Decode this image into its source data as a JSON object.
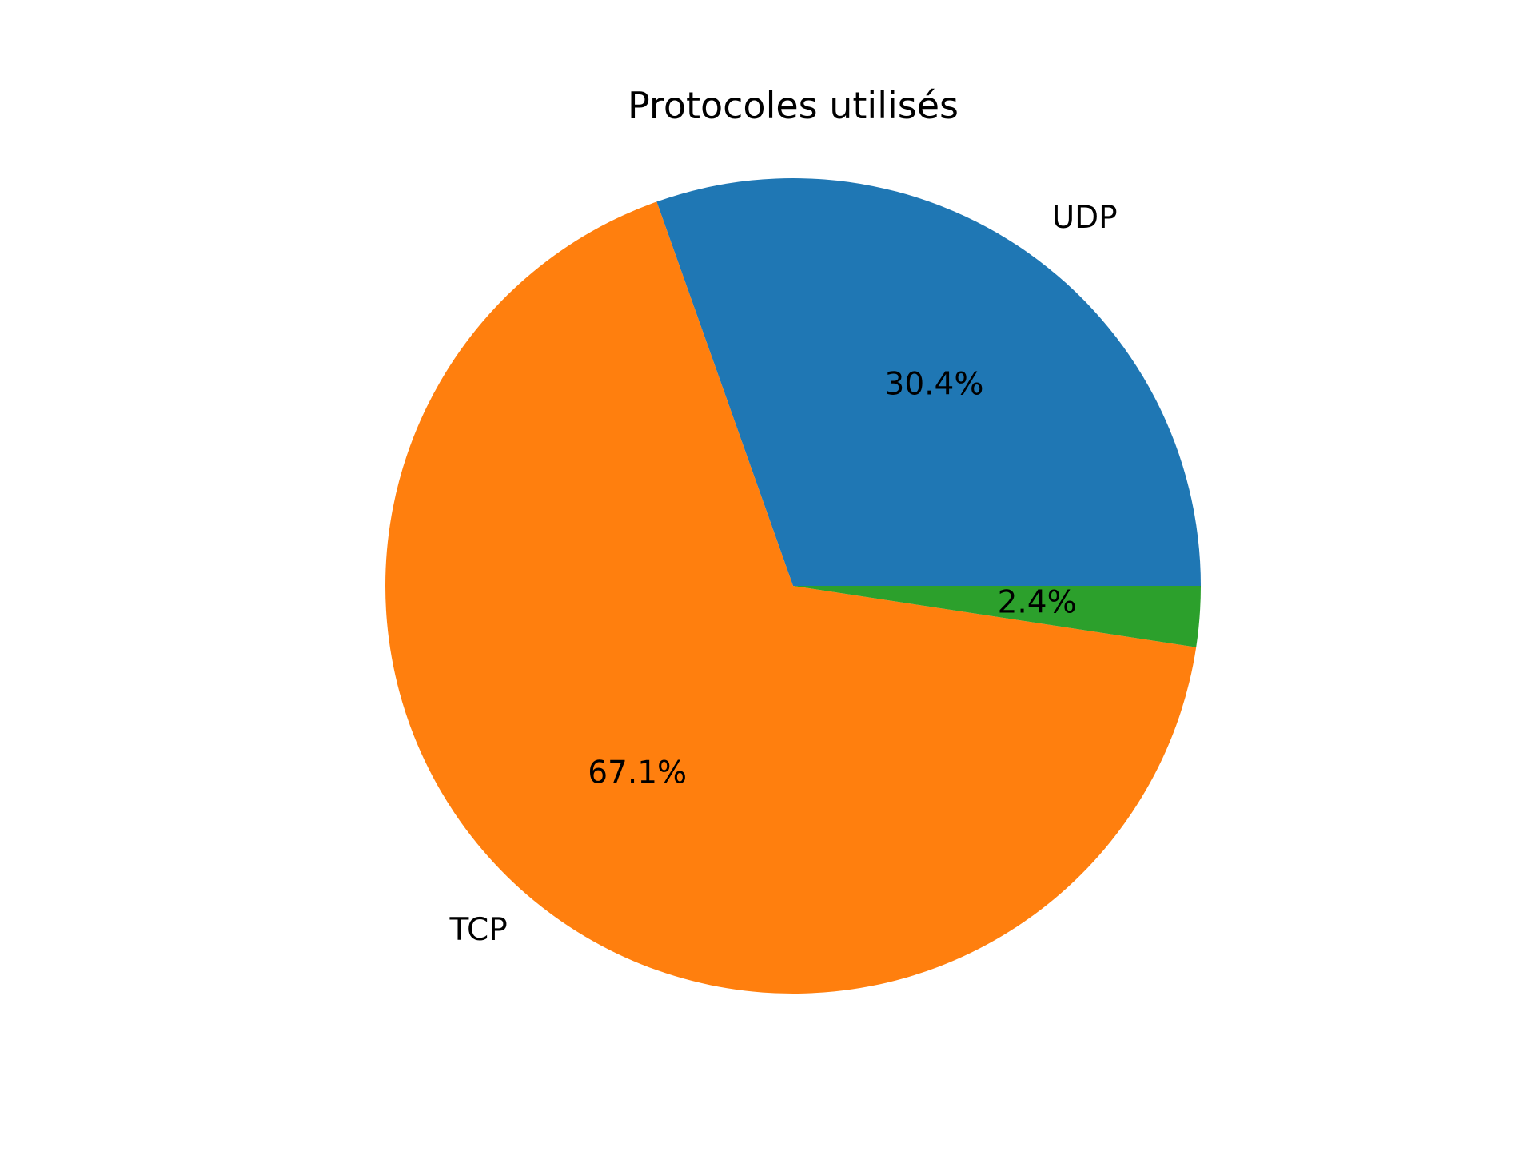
{
  "chart_data": {
    "type": "pie",
    "title": "Protocoles utilisés",
    "slices": [
      {
        "label": "UDP",
        "value": 30.4,
        "pct_label": "30.4%",
        "color": "#1f77b4"
      },
      {
        "label": "TCP",
        "value": 67.1,
        "pct_label": "67.1%",
        "color": "#ff7f0e"
      },
      {
        "label": "",
        "value": 2.4,
        "pct_label": "2.4%",
        "color": "#2ca02c"
      }
    ],
    "start_angle_deg": 0,
    "direction": "counterclockwise",
    "legend": "none"
  }
}
